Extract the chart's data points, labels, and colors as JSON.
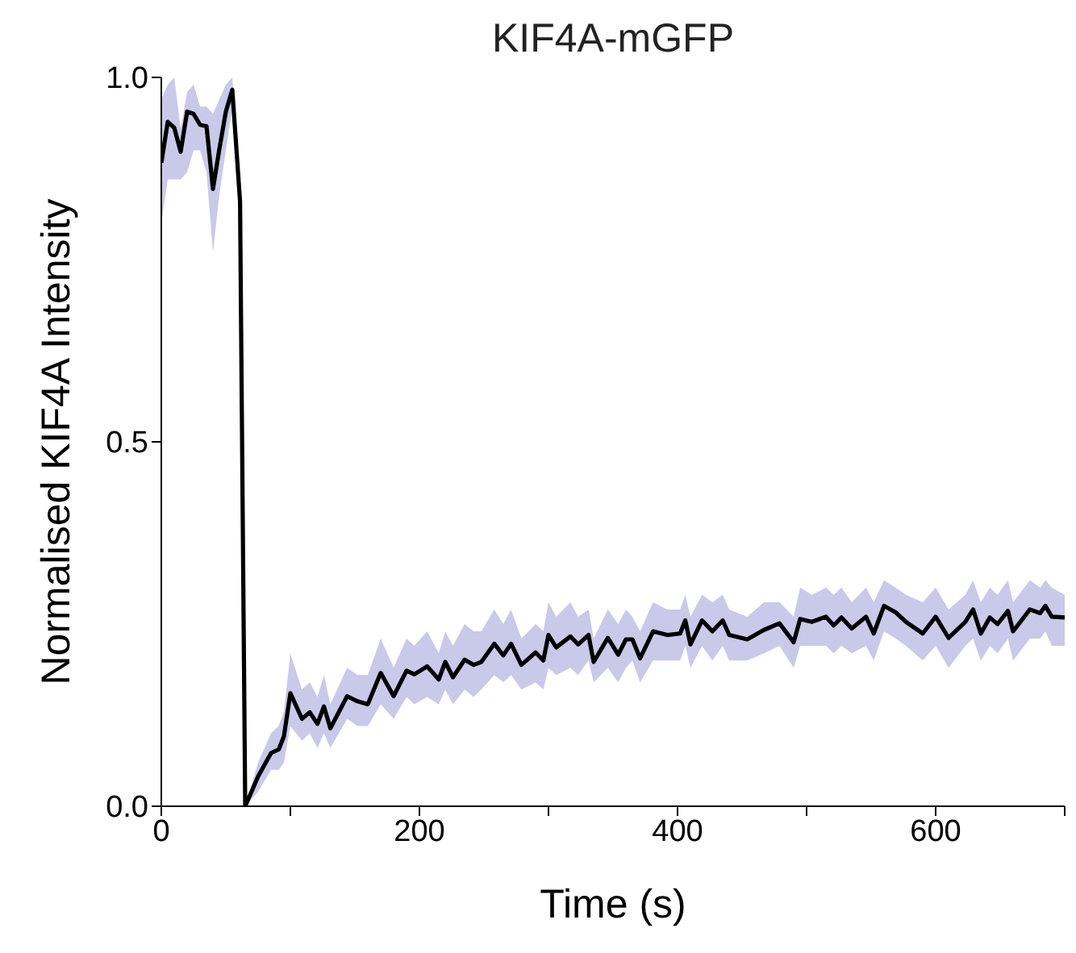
{
  "chart_data": {
    "type": "line",
    "title": "KIF4A-mGFP",
    "xlabel": "Time (s)",
    "ylabel": "Normalised KIF4A Intensity",
    "x": [
      0,
      5,
      10,
      15,
      20,
      25,
      30,
      35,
      40,
      45,
      50,
      55,
      61,
      65,
      75,
      85,
      91,
      95,
      100,
      109,
      115,
      121,
      126,
      131,
      144,
      152,
      160,
      170,
      180,
      190,
      196,
      206,
      215,
      220,
      226,
      235,
      242,
      248,
      258,
      265,
      271,
      279,
      290,
      296,
      300,
      306,
      317,
      323,
      331,
      335,
      346,
      354,
      360,
      365,
      371,
      381,
      392,
      402,
      406,
      410,
      419,
      427,
      435,
      440,
      454,
      467,
      479,
      490,
      495,
      504,
      515,
      521,
      527,
      535,
      546,
      552,
      560,
      569,
      577,
      590,
      600,
      610,
      623,
      629,
      635,
      642,
      648,
      656,
      660,
      673,
      681,
      685,
      690,
      700
    ],
    "series": [
      {
        "color": "#000000",
        "values": [
          0.883,
          0.939,
          0.931,
          0.898,
          0.953,
          0.95,
          0.935,
          0.933,
          0.847,
          0.902,
          0.953,
          0.983,
          0.83,
          0,
          0.041,
          0.073,
          0.078,
          0.096,
          0.155,
          0.12,
          0.129,
          0.113,
          0.137,
          0.107,
          0.151,
          0.144,
          0.14,
          0.183,
          0.151,
          0.186,
          0.181,
          0.192,
          0.174,
          0.198,
          0.177,
          0.201,
          0.194,
          0.198,
          0.223,
          0.207,
          0.223,
          0.194,
          0.211,
          0.2,
          0.235,
          0.218,
          0.233,
          0.222,
          0.235,
          0.198,
          0.231,
          0.208,
          0.229,
          0.229,
          0.203,
          0.24,
          0.235,
          0.237,
          0.255,
          0.222,
          0.255,
          0.24,
          0.255,
          0.235,
          0.229,
          0.242,
          0.251,
          0.225,
          0.257,
          0.253,
          0.26,
          0.248,
          0.259,
          0.244,
          0.26,
          0.237,
          0.275,
          0.266,
          0.253,
          0.237,
          0.26,
          0.231,
          0.253,
          0.27,
          0.237,
          0.259,
          0.25,
          0.268,
          0.24,
          0.27,
          0.265,
          0.275,
          0.26,
          0.259
        ],
        "lower": [
          0.8,
          0.86,
          0.86,
          0.86,
          0.87,
          0.9,
          0.9,
          0.87,
          0.76,
          0.84,
          0.9,
          0.96,
          0.81,
          0,
          0.02,
          0.05,
          0.05,
          0.06,
          0.11,
          0.09,
          0.1,
          0.08,
          0.1,
          0.08,
          0.12,
          0.11,
          0.11,
          0.14,
          0.12,
          0.15,
          0.14,
          0.15,
          0.14,
          0.16,
          0.14,
          0.16,
          0.15,
          0.16,
          0.18,
          0.17,
          0.18,
          0.16,
          0.17,
          0.16,
          0.19,
          0.18,
          0.19,
          0.18,
          0.2,
          0.17,
          0.19,
          0.17,
          0.19,
          0.2,
          0.17,
          0.2,
          0.2,
          0.2,
          0.22,
          0.19,
          0.22,
          0.2,
          0.22,
          0.2,
          0.2,
          0.21,
          0.22,
          0.19,
          0.22,
          0.22,
          0.22,
          0.21,
          0.22,
          0.21,
          0.22,
          0.2,
          0.24,
          0.23,
          0.22,
          0.2,
          0.22,
          0.19,
          0.22,
          0.23,
          0.2,
          0.22,
          0.21,
          0.23,
          0.2,
          0.23,
          0.23,
          0.24,
          0.22,
          0.22
        ],
        "upper": [
          0.97,
          0.99,
          1.0,
          0.93,
          0.98,
          0.99,
          0.96,
          0.96,
          0.95,
          0.97,
          0.99,
          1.0,
          0.85,
          0,
          0.06,
          0.1,
          0.11,
          0.13,
          0.21,
          0.16,
          0.17,
          0.15,
          0.18,
          0.14,
          0.19,
          0.18,
          0.18,
          0.23,
          0.19,
          0.23,
          0.22,
          0.24,
          0.21,
          0.24,
          0.22,
          0.25,
          0.24,
          0.24,
          0.27,
          0.25,
          0.27,
          0.23,
          0.25,
          0.24,
          0.28,
          0.26,
          0.28,
          0.26,
          0.27,
          0.23,
          0.27,
          0.25,
          0.27,
          0.26,
          0.24,
          0.28,
          0.27,
          0.27,
          0.29,
          0.26,
          0.29,
          0.28,
          0.29,
          0.27,
          0.26,
          0.28,
          0.28,
          0.26,
          0.3,
          0.29,
          0.3,
          0.29,
          0.3,
          0.28,
          0.3,
          0.28,
          0.31,
          0.3,
          0.29,
          0.28,
          0.3,
          0.27,
          0.29,
          0.31,
          0.28,
          0.3,
          0.29,
          0.31,
          0.28,
          0.31,
          0.3,
          0.31,
          0.3,
          0.29
        ]
      }
    ],
    "xlim": [
      0,
      700
    ],
    "xticks": [
      0,
      {
        "value": 100,
        "label": null
      },
      200,
      {
        "value": 300,
        "label": null
      },
      400,
      {
        "value": 500,
        "label": null
      },
      600,
      {
        "value": 700,
        "label": null
      }
    ],
    "ylim": [
      0,
      1
    ],
    "yticks": [
      {
        "value": 0,
        "label": "0.0"
      },
      0.5,
      {
        "value": 1,
        "label": "1.0"
      }
    ],
    "grid": false,
    "legend": false,
    "marker": "none",
    "line_style": "solid"
  }
}
